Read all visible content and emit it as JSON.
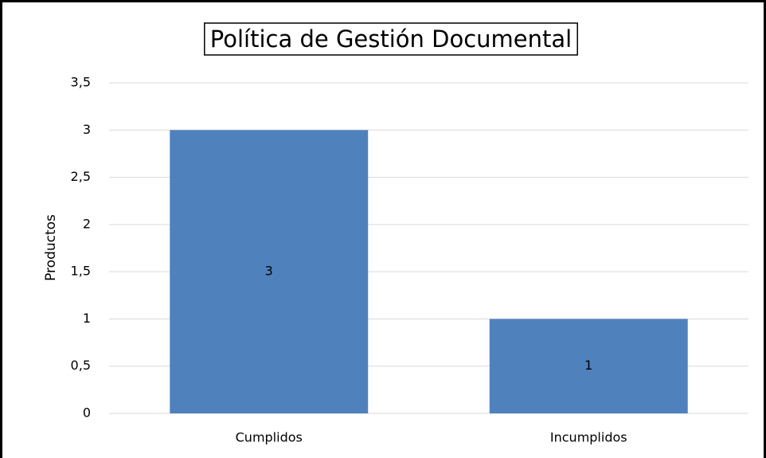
{
  "chart_data": {
    "type": "bar",
    "title": "Política de Gestión Documental",
    "ylabel": "Productos",
    "categories": [
      "Cumplidos",
      "Incumplidos"
    ],
    "values": [
      3,
      1
    ],
    "color": "#4f81bd",
    "ylim": [
      0,
      3.5
    ],
    "yticks": [
      0,
      {
        "value": 0.5,
        "label": "0,5"
      },
      1,
      {
        "value": 1.5,
        "label": "1,5"
      },
      2,
      {
        "value": 2.5,
        "label": "2,5"
      },
      3,
      {
        "value": 3.5,
        "label": "3,5"
      }
    ],
    "grid": true
  }
}
